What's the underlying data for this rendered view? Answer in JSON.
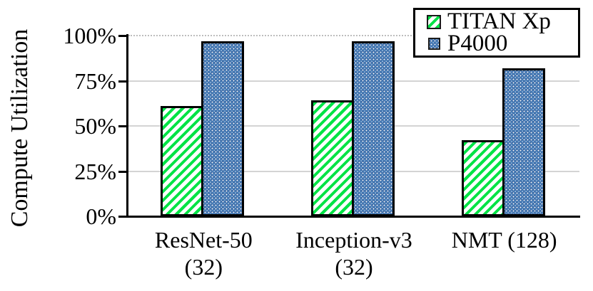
{
  "chart_data": {
    "type": "bar",
    "title": "",
    "xlabel": "",
    "ylabel": "Compute Utilization",
    "categories": [
      [
        "ResNet-50",
        "(32)"
      ],
      [
        "Inception-v3",
        "(32)"
      ],
      [
        "NMT (128)"
      ]
    ],
    "series": [
      {
        "name": "TITAN Xp",
        "values": [
          61,
          64,
          42
        ],
        "pattern": "green-diagonal-hatch"
      },
      {
        "name": "P4000",
        "values": [
          97,
          97,
          82
        ],
        "pattern": "blue-circle-crosshatch"
      }
    ],
    "y_ticks": [
      {
        "value": 0,
        "label": "0%"
      },
      {
        "value": 25,
        "label": "25%"
      },
      {
        "value": 50,
        "label": "50%"
      },
      {
        "value": 75,
        "label": "75%"
      },
      {
        "value": 100,
        "label": "100%"
      }
    ],
    "ylim": [
      0,
      100
    ],
    "grid": true,
    "legend_position": "top-right",
    "colors": {
      "titan_green": "#00e345",
      "p4000_blue": "#6699cc",
      "p4000_dark_blue": "#2e5f9e",
      "gridline_gray": "#d4d4d4",
      "axis_black": "#000000"
    }
  }
}
